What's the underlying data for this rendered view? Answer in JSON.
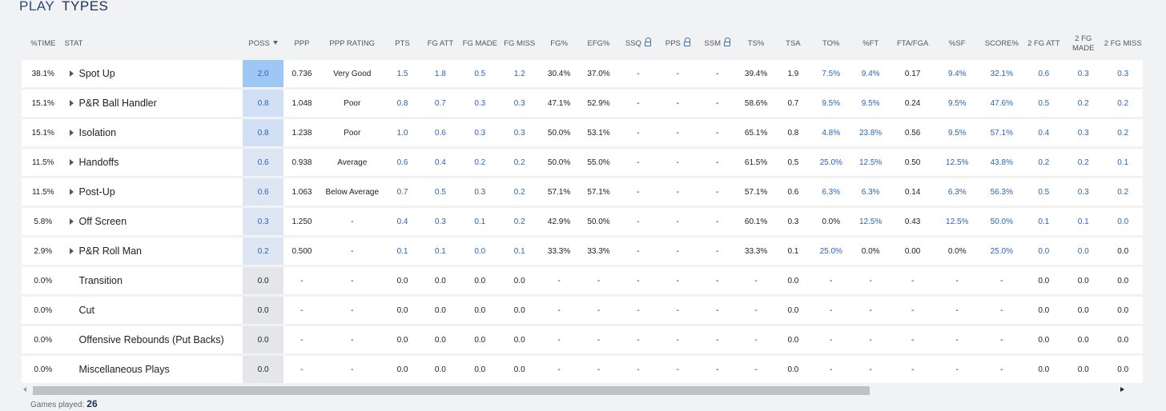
{
  "section": {
    "title_part1": "PLAY",
    "title_part2": "TYPES"
  },
  "columns": [
    {
      "key": "time",
      "label": "%TIME"
    },
    {
      "key": "stat",
      "label": "STAT"
    },
    {
      "key": "poss",
      "label": "POSS",
      "sort": "descending"
    },
    {
      "key": "ppp",
      "label": "PPP"
    },
    {
      "key": "ppp_rating",
      "label": "PPP RATING"
    },
    {
      "key": "pts",
      "label": "PTS"
    },
    {
      "key": "fg_att",
      "label": "FG ATT"
    },
    {
      "key": "fg_made",
      "label": "FG MADE"
    },
    {
      "key": "fg_miss",
      "label": "FG MISS"
    },
    {
      "key": "fg_pct",
      "label": "FG%"
    },
    {
      "key": "efg_pct",
      "label": "EFG%"
    },
    {
      "key": "ssq",
      "label": "SSQ",
      "locked": true
    },
    {
      "key": "pps",
      "label": "PPS",
      "locked": true
    },
    {
      "key": "ssm",
      "label": "SSM",
      "locked": true
    },
    {
      "key": "ts_pct",
      "label": "TS%"
    },
    {
      "key": "tsa",
      "label": "TSA"
    },
    {
      "key": "to_pct",
      "label": "TO%"
    },
    {
      "key": "ft_pct",
      "label": "%FT"
    },
    {
      "key": "fta_fga",
      "label": "FTA/FGA"
    },
    {
      "key": "sf_pct",
      "label": "%SF"
    },
    {
      "key": "score_pct",
      "label": "SCORE%"
    },
    {
      "key": "fg2_att",
      "label": "2 FG ATT"
    },
    {
      "key": "fg2_made",
      "label": "2 FG MADE"
    },
    {
      "key": "fg2_miss",
      "label": "2 FG MISS"
    }
  ],
  "rows": [
    {
      "expandable": true,
      "time": "38.1%",
      "stat": "Spot Up",
      "poss": "2.0",
      "ppp": "0.736",
      "ppp_rating": "Very Good",
      "pts": "1.5",
      "fg_att": "1.8",
      "fg_made": "0.5",
      "fg_miss": "1.2",
      "fg_pct": "30.4%",
      "efg_pct": "37.0%",
      "ssq": "-",
      "pps": "-",
      "ssm": "-",
      "ts_pct": "39.4%",
      "tsa": "1.9",
      "to_pct": "7.5%",
      "ft_pct": "9.4%",
      "fta_fga": "0.17",
      "sf_pct": "9.4%",
      "score_pct": "32.1%",
      "fg2_att": "0.6",
      "fg2_made": "0.3",
      "fg2_miss": "0.3"
    },
    {
      "expandable": true,
      "time": "15.1%",
      "stat": "P&R Ball Handler",
      "poss": "0.8",
      "ppp": "1.048",
      "ppp_rating": "Poor",
      "pts": "0.8",
      "fg_att": "0.7",
      "fg_made": "0.3",
      "fg_miss": "0.3",
      "fg_pct": "47.1%",
      "efg_pct": "52.9%",
      "ssq": "-",
      "pps": "-",
      "ssm": "-",
      "ts_pct": "58.6%",
      "tsa": "0.7",
      "to_pct": "9.5%",
      "ft_pct": "9.5%",
      "fta_fga": "0.24",
      "sf_pct": "9.5%",
      "score_pct": "47.6%",
      "fg2_att": "0.5",
      "fg2_made": "0.2",
      "fg2_miss": "0.2"
    },
    {
      "expandable": true,
      "time": "15.1%",
      "stat": "Isolation",
      "poss": "0.8",
      "ppp": "1.238",
      "ppp_rating": "Poor",
      "pts": "1.0",
      "fg_att": "0.6",
      "fg_made": "0.3",
      "fg_miss": "0.3",
      "fg_pct": "50.0%",
      "efg_pct": "53.1%",
      "ssq": "-",
      "pps": "-",
      "ssm": "-",
      "ts_pct": "65.1%",
      "tsa": "0.8",
      "to_pct": "4.8%",
      "ft_pct": "23.8%",
      "fta_fga": "0.56",
      "sf_pct": "9.5%",
      "score_pct": "57.1%",
      "fg2_att": "0.4",
      "fg2_made": "0.3",
      "fg2_miss": "0.2"
    },
    {
      "expandable": true,
      "time": "11.5%",
      "stat": "Handoffs",
      "poss": "0.6",
      "ppp": "0.938",
      "ppp_rating": "Average",
      "pts": "0.6",
      "fg_att": "0.4",
      "fg_made": "0.2",
      "fg_miss": "0.2",
      "fg_pct": "50.0%",
      "efg_pct": "55.0%",
      "ssq": "-",
      "pps": "-",
      "ssm": "-",
      "ts_pct": "61.5%",
      "tsa": "0.5",
      "to_pct": "25.0%",
      "ft_pct": "12.5%",
      "fta_fga": "0.50",
      "sf_pct": "12.5%",
      "score_pct": "43.8%",
      "fg2_att": "0.2",
      "fg2_made": "0.2",
      "fg2_miss": "0.1"
    },
    {
      "expandable": true,
      "time": "11.5%",
      "stat": "Post-Up",
      "poss": "0.6",
      "ppp": "1.063",
      "ppp_rating": "Below Average",
      "pts": "0.7",
      "fg_att": "0.5",
      "fg_made": "0.3",
      "fg_miss": "0.2",
      "fg_pct": "57.1%",
      "efg_pct": "57.1%",
      "ssq": "-",
      "pps": "-",
      "ssm": "-",
      "ts_pct": "57.1%",
      "tsa": "0.6",
      "to_pct": "6.3%",
      "ft_pct": "6.3%",
      "fta_fga": "0.14",
      "sf_pct": "6.3%",
      "score_pct": "56.3%",
      "fg2_att": "0.5",
      "fg2_made": "0.3",
      "fg2_miss": "0.2"
    },
    {
      "expandable": true,
      "time": "5.8%",
      "stat": "Off Screen",
      "poss": "0.3",
      "ppp": "1.250",
      "ppp_rating": "-",
      "pts": "0.4",
      "fg_att": "0.3",
      "fg_made": "0.1",
      "fg_miss": "0.2",
      "fg_pct": "42.9%",
      "efg_pct": "50.0%",
      "ssq": "-",
      "pps": "-",
      "ssm": "-",
      "ts_pct": "60.1%",
      "tsa": "0.3",
      "to_pct": "0.0%",
      "ft_pct": "12.5%",
      "fta_fga": "0.43",
      "sf_pct": "12.5%",
      "score_pct": "50.0%",
      "fg2_att": "0.1",
      "fg2_made": "0.1",
      "fg2_miss": "0.0"
    },
    {
      "expandable": true,
      "time": "2.9%",
      "stat": "P&R Roll Man",
      "poss": "0.2",
      "ppp": "0.500",
      "ppp_rating": "-",
      "pts": "0.1",
      "fg_att": "0.1",
      "fg_made": "0.0",
      "fg_miss": "0.1",
      "fg_pct": "33.3%",
      "efg_pct": "33.3%",
      "ssq": "-",
      "pps": "-",
      "ssm": "-",
      "ts_pct": "33.3%",
      "tsa": "0.1",
      "to_pct": "25.0%",
      "ft_pct": "0.0%",
      "fta_fga": "0.00",
      "sf_pct": "0.0%",
      "score_pct": "25.0%",
      "fg2_att": "0.0",
      "fg2_made": "0.0",
      "fg2_miss": "0.0"
    },
    {
      "expandable": false,
      "time": "0.0%",
      "stat": "Transition",
      "poss": "0.0",
      "ppp": "-",
      "ppp_rating": "-",
      "pts": "0.0",
      "fg_att": "0.0",
      "fg_made": "0.0",
      "fg_miss": "0.0",
      "fg_pct": "-",
      "efg_pct": "-",
      "ssq": "-",
      "pps": "-",
      "ssm": "-",
      "ts_pct": "-",
      "tsa": "0.0",
      "to_pct": "-",
      "ft_pct": "-",
      "fta_fga": "-",
      "sf_pct": "-",
      "score_pct": "-",
      "fg2_att": "0.0",
      "fg2_made": "0.0",
      "fg2_miss": "0.0"
    },
    {
      "expandable": false,
      "time": "0.0%",
      "stat": "Cut",
      "poss": "0.0",
      "ppp": "-",
      "ppp_rating": "-",
      "pts": "0.0",
      "fg_att": "0.0",
      "fg_made": "0.0",
      "fg_miss": "0.0",
      "fg_pct": "-",
      "efg_pct": "-",
      "ssq": "-",
      "pps": "-",
      "ssm": "-",
      "ts_pct": "-",
      "tsa": "0.0",
      "to_pct": "-",
      "ft_pct": "-",
      "fta_fga": "-",
      "sf_pct": "-",
      "score_pct": "-",
      "fg2_att": "0.0",
      "fg2_made": "0.0",
      "fg2_miss": "0.0"
    },
    {
      "expandable": false,
      "time": "0.0%",
      "stat": "Offensive Rebounds (Put Backs)",
      "poss": "0.0",
      "ppp": "-",
      "ppp_rating": "-",
      "pts": "0.0",
      "fg_att": "0.0",
      "fg_made": "0.0",
      "fg_miss": "0.0",
      "fg_pct": "-",
      "efg_pct": "-",
      "ssq": "-",
      "pps": "-",
      "ssm": "-",
      "ts_pct": "-",
      "tsa": "0.0",
      "to_pct": "-",
      "ft_pct": "-",
      "fta_fga": "-",
      "sf_pct": "-",
      "score_pct": "-",
      "fg2_att": "0.0",
      "fg2_made": "0.0",
      "fg2_miss": "0.0"
    },
    {
      "expandable": false,
      "time": "0.0%",
      "stat": "Miscellaneous Plays",
      "poss": "0.0",
      "ppp": "-",
      "ppp_rating": "-",
      "pts": "0.0",
      "fg_att": "0.0",
      "fg_made": "0.0",
      "fg_miss": "0.0",
      "fg_pct": "-",
      "efg_pct": "-",
      "ssq": "-",
      "pps": "-",
      "ssm": "-",
      "ts_pct": "-",
      "tsa": "0.0",
      "to_pct": "-",
      "ft_pct": "-",
      "fta_fga": "-",
      "sf_pct": "-",
      "score_pct": "-",
      "fg2_att": "0.0",
      "fg2_made": "0.0",
      "fg2_miss": "0.0"
    }
  ],
  "link_columns": [
    "pts",
    "fg_att",
    "fg_made",
    "fg_miss",
    "to_pct",
    "ft_pct",
    "sf_pct",
    "score_pct",
    "fg2_att",
    "fg2_made",
    "fg2_miss"
  ],
  "footer": {
    "games_played_label": "Games played:",
    "games_played_value": "26"
  },
  "colors": {
    "link": "#2a64c0",
    "poss_highlight_top": "#9ec7f5",
    "title": "#2d4a7a"
  }
}
